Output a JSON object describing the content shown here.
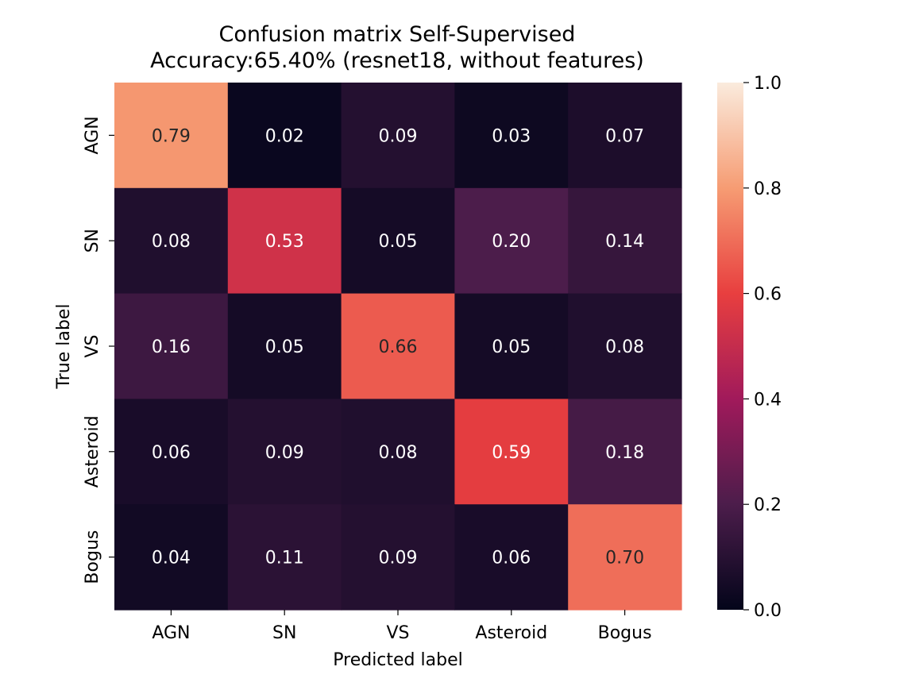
{
  "chart_data": {
    "type": "heatmap",
    "title_line1": "Confusion matrix Self-Supervised",
    "title_line2": "Accuracy:65.40% (resnet18, without features)",
    "xlabel": "Predicted label",
    "ylabel": "True label",
    "x_categories": [
      "AGN",
      "SN",
      "VS",
      "Asteroid",
      "Bogus"
    ],
    "y_categories": [
      "AGN",
      "SN",
      "VS",
      "Asteroid",
      "Bogus"
    ],
    "values": [
      [
        0.79,
        0.02,
        0.09,
        0.03,
        0.07
      ],
      [
        0.08,
        0.53,
        0.05,
        0.2,
        0.14
      ],
      [
        0.16,
        0.05,
        0.66,
        0.05,
        0.08
      ],
      [
        0.06,
        0.09,
        0.08,
        0.59,
        0.18
      ],
      [
        0.04,
        0.11,
        0.09,
        0.06,
        0.7
      ]
    ],
    "value_labels": [
      [
        "0.79",
        "0.02",
        "0.09",
        "0.03",
        "0.07"
      ],
      [
        "0.08",
        "0.53",
        "0.05",
        "0.20",
        "0.14"
      ],
      [
        "0.16",
        "0.05",
        "0.66",
        "0.05",
        "0.08"
      ],
      [
        "0.06",
        "0.09",
        "0.08",
        "0.59",
        "0.18"
      ],
      [
        "0.04",
        "0.11",
        "0.09",
        "0.06",
        "0.70"
      ]
    ],
    "colorbar": {
      "range": [
        0.0,
        1.0
      ],
      "ticks": [
        0.0,
        0.2,
        0.4,
        0.6,
        0.8,
        1.0
      ],
      "tick_labels": [
        "0.0",
        "0.2",
        "0.4",
        "0.6",
        "0.8",
        "1.0"
      ]
    },
    "colormap": "rocket",
    "colormap_stops": [
      "#03051a",
      "#4c1d4b",
      "#a11a5b",
      "#e83f3f",
      "#f69c73",
      "#faebdd"
    ]
  }
}
